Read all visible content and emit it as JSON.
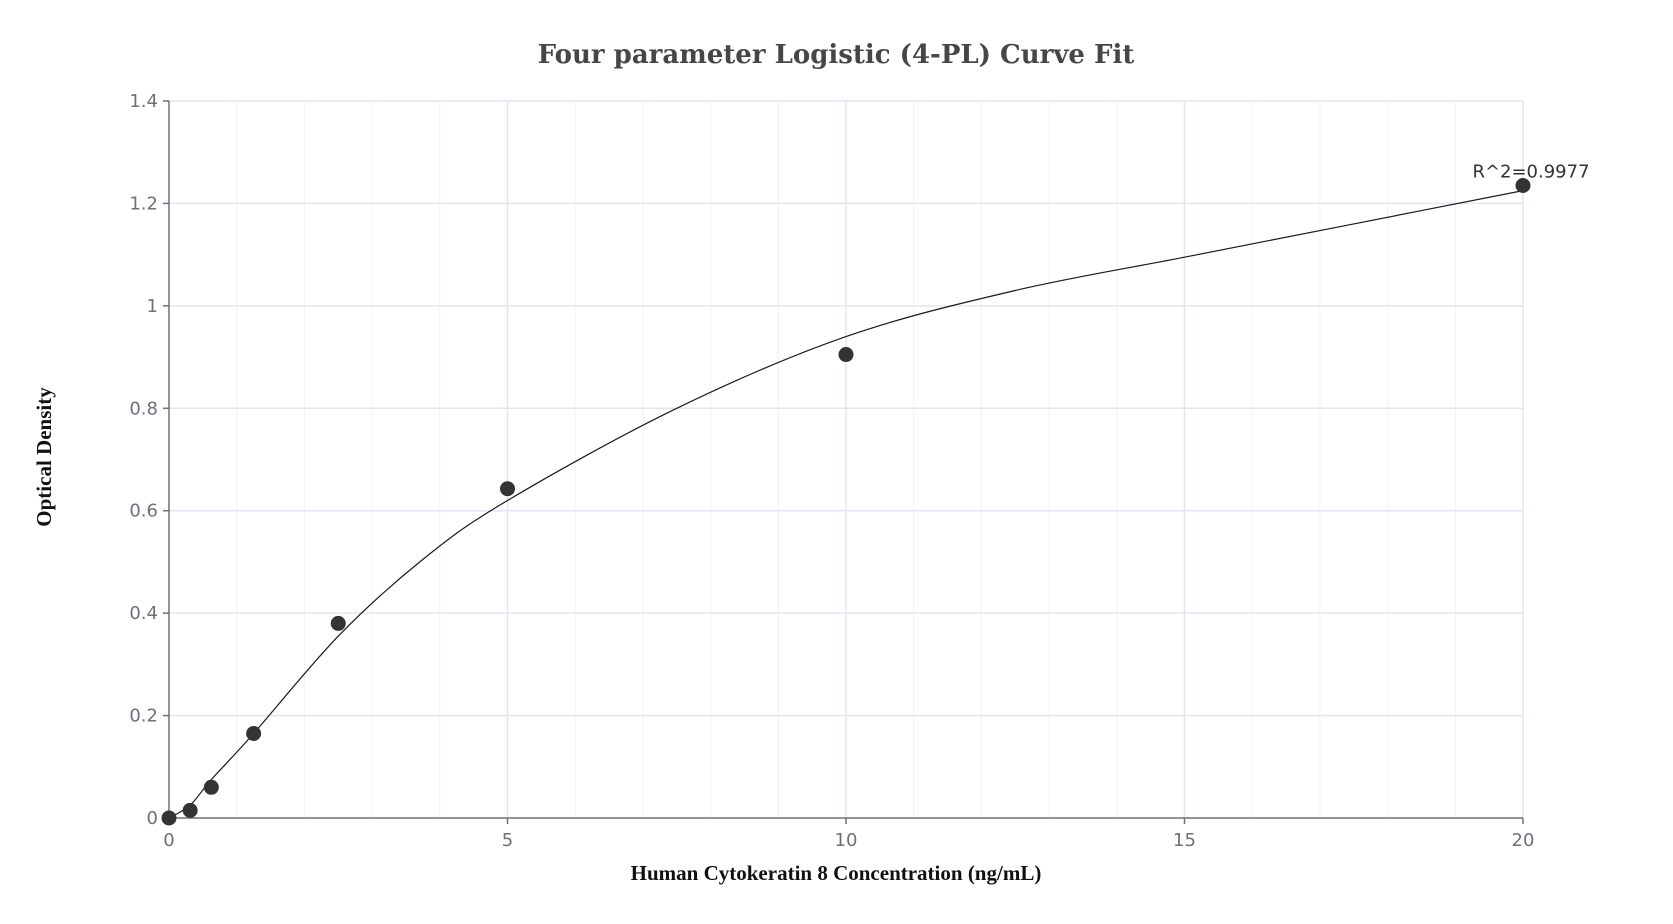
{
  "chart_data": {
    "type": "scatter",
    "title": "Four parameter Logistic (4-PL) Curve Fit",
    "xlabel": "Human Cytokeratin 8 Concentration (ng/mL)",
    "ylabel": "Optical Density",
    "xlim": [
      0,
      20
    ],
    "ylim": [
      0,
      1.4
    ],
    "x_ticks": [
      0,
      5,
      10,
      15,
      20
    ],
    "y_ticks": [
      0,
      0.2,
      0.4,
      0.6,
      0.8,
      1,
      1.2,
      1.4
    ],
    "x_tick_labels": [
      "0",
      "5",
      "10",
      "15",
      "20"
    ],
    "y_tick_labels": [
      "0",
      "0.2",
      "0.4",
      "0.6",
      "0.8",
      "1",
      "1.2",
      "1.4"
    ],
    "grid": true,
    "series": [
      {
        "type": "scatter",
        "x": [
          0,
          0.3125,
          0.625,
          1.25,
          2.5,
          5,
          10,
          20
        ],
        "y": [
          0.0,
          0.015,
          0.06,
          0.165,
          0.38,
          0.643,
          0.905,
          1.235
        ]
      },
      {
        "type": "line",
        "fit": "4PL",
        "x": [
          0,
          0.3125,
          0.625,
          1.25,
          2.5,
          3.75,
          5,
          7.5,
          10,
          12.5,
          15,
          17.5,
          20
        ],
        "y": [
          0.0,
          0.025,
          0.075,
          0.165,
          0.355,
          0.505,
          0.62,
          0.8,
          0.94,
          1.03,
          1.095,
          1.16,
          1.225
        ]
      }
    ],
    "annotations": [
      {
        "text": "R^2=0.9977",
        "x": 20,
        "y": 1.235
      }
    ]
  }
}
